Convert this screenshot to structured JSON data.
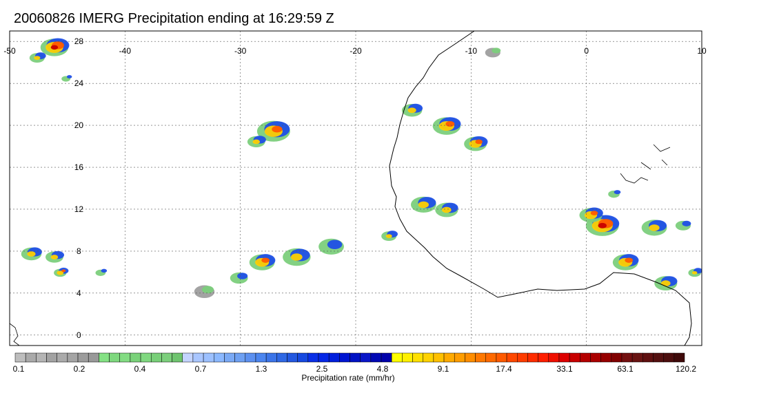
{
  "title": "20060826 IMERG Precipitation ending at 16:29:59 Z",
  "map": {
    "lon_range": [
      -50,
      10
    ],
    "lat_range": [
      -1,
      29
    ],
    "lon_ticks": [
      -50,
      -40,
      -30,
      -20,
      -10,
      0,
      10
    ],
    "lon_tick_labels": [
      "-50",
      "-40",
      "-30",
      "-20",
      "-10",
      "0",
      "10"
    ],
    "lat_ticks": [
      0,
      4,
      8,
      12,
      16,
      20,
      24,
      28
    ],
    "lat_tick_labels": [
      "0",
      "4",
      "8",
      "12",
      "16",
      "20",
      "24",
      "28"
    ],
    "grid": true,
    "coastline_color": "#000000"
  },
  "precip_clusters": [
    {
      "lon": -46,
      "lat": 27.5,
      "size": 2.2,
      "peak": 4
    },
    {
      "lon": -47.5,
      "lat": 26.5,
      "size": 1.2,
      "peak": 2
    },
    {
      "lon": -27,
      "lat": 19.5,
      "size": 2.6,
      "peak": 3
    },
    {
      "lon": -28.5,
      "lat": 18.5,
      "size": 1.4,
      "peak": 2
    },
    {
      "lon": -15,
      "lat": 21.5,
      "size": 1.6,
      "peak": 2
    },
    {
      "lon": -12,
      "lat": 20,
      "size": 2.2,
      "peak": 3
    },
    {
      "lon": -9.5,
      "lat": 18.3,
      "size": 1.8,
      "peak": 3
    },
    {
      "lon": -14,
      "lat": 12.5,
      "size": 2.0,
      "peak": 2
    },
    {
      "lon": -12,
      "lat": 12,
      "size": 1.8,
      "peak": 2
    },
    {
      "lon": -17,
      "lat": 9.5,
      "size": 1.2,
      "peak": 2
    },
    {
      "lon": -22,
      "lat": 8.5,
      "size": 2.0,
      "peak": 1
    },
    {
      "lon": -25,
      "lat": 7.5,
      "size": 2.2,
      "peak": 2
    },
    {
      "lon": -28,
      "lat": 7.0,
      "size": 2.0,
      "peak": 3
    },
    {
      "lon": -30,
      "lat": 5.5,
      "size": 1.4,
      "peak": 1
    },
    {
      "lon": -33,
      "lat": 4.2,
      "size": 1.6,
      "peak": 0
    },
    {
      "lon": -48,
      "lat": 7.8,
      "size": 1.6,
      "peak": 2
    },
    {
      "lon": -46,
      "lat": 7.5,
      "size": 1.4,
      "peak": 2
    },
    {
      "lon": -45.5,
      "lat": 6.0,
      "size": 1.0,
      "peak": 3
    },
    {
      "lon": -42,
      "lat": 6.0,
      "size": 0.8,
      "peak": 1
    },
    {
      "lon": 1.5,
      "lat": 10.5,
      "size": 2.6,
      "peak": 4
    },
    {
      "lon": 0.5,
      "lat": 11.5,
      "size": 1.8,
      "peak": 3
    },
    {
      "lon": 3.5,
      "lat": 7.0,
      "size": 2.0,
      "peak": 3
    },
    {
      "lon": 6.0,
      "lat": 10.3,
      "size": 2.0,
      "peak": 2
    },
    {
      "lon": 8.5,
      "lat": 10.5,
      "size": 1.2,
      "peak": 1
    },
    {
      "lon": 7.0,
      "lat": 5.0,
      "size": 1.8,
      "peak": 2
    },
    {
      "lon": 9.5,
      "lat": 6.0,
      "size": 1.0,
      "peak": 2
    },
    {
      "lon": 2.5,
      "lat": 13.5,
      "size": 0.9,
      "peak": 1
    },
    {
      "lon": -8.0,
      "lat": 27.0,
      "size": 1.2,
      "peak": 0
    },
    {
      "lon": -45,
      "lat": 24.5,
      "size": 0.7,
      "peak": 1
    }
  ],
  "colorbar": {
    "title": "Precipitation rate (mm/hr)",
    "colors": [
      "#bdbdbd",
      "#a9a9a9",
      "#b4b4b4",
      "#a2a2a2",
      "#aaaaaa",
      "#a4a4a4",
      "#9c9c9c",
      "#999999",
      "#84e184",
      "#7ed87e",
      "#83dc83",
      "#7ad27a",
      "#80d880",
      "#78cf78",
      "#7ccf7c",
      "#6fc46f",
      "#c4d4ff",
      "#a9c6ff",
      "#9cc0ff",
      "#8bb8ff",
      "#7aa9f5",
      "#6ea0f2",
      "#5c90f0",
      "#4b85ef",
      "#3b74e8",
      "#2f68e4",
      "#2358e0",
      "#1649e0",
      "#0a2fe6",
      "#0527e6",
      "#001edc",
      "#0015d2",
      "#0012c4",
      "#0a16c8",
      "#0008b4",
      "#0000aa",
      "#ffff00",
      "#fff000",
      "#ffe000",
      "#ffd200",
      "#ffc000",
      "#ffaa00",
      "#ff9d00",
      "#ff8d00",
      "#ff7800",
      "#ff6900",
      "#ff5a00",
      "#ff4800",
      "#ff3c00",
      "#ff2c00",
      "#ff1e00",
      "#ef0f00",
      "#dd0000",
      "#c80000",
      "#b40000",
      "#aa0000",
      "#960000",
      "#800000",
      "#731010",
      "#691412",
      "#5f1010",
      "#541010",
      "#4c0e0e",
      "#3f0a0a"
    ],
    "tick_labels": [
      "0.1",
      "0.2",
      "0.4",
      "0.7",
      "1.3",
      "2.5",
      "4.8",
      "9.1",
      "17.4",
      "33.1",
      "63.1",
      "120.2"
    ]
  }
}
